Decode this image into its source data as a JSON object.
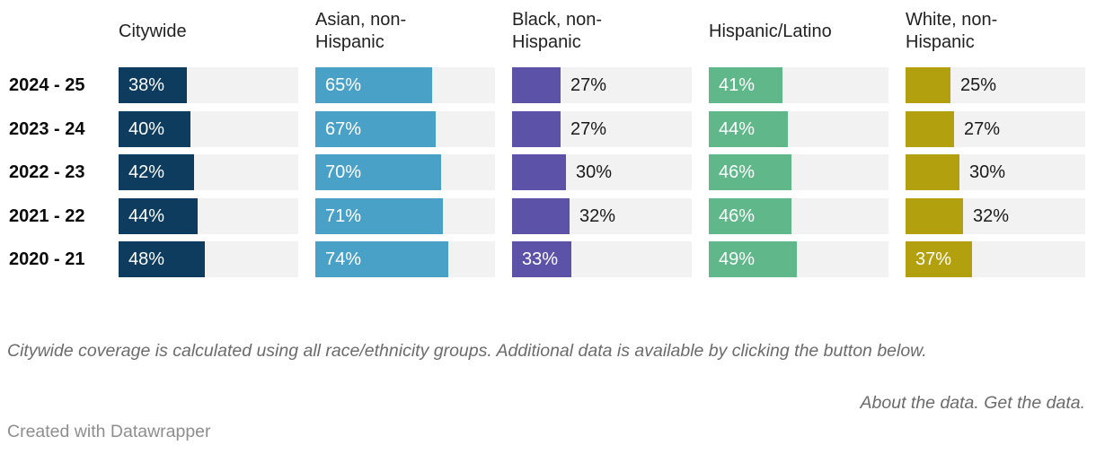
{
  "chart_data": {
    "type": "bar",
    "orientation": "horizontal",
    "categories": [
      "2024 - 25",
      "2023 - 24",
      "2022 - 23",
      "2021 - 22",
      "2020 - 21"
    ],
    "series": [
      {
        "name": "Citywide",
        "header_label": "Citywide",
        "color": "#0d3c5e",
        "values": [
          38,
          40,
          42,
          44,
          48
        ]
      },
      {
        "name": "Asian, non-Hispanic",
        "header_label": "Asian, non-\nHispanic",
        "color": "#4aa1c8",
        "values": [
          65,
          67,
          70,
          71,
          74
        ]
      },
      {
        "name": "Black, non-Hispanic",
        "header_label": "Black, non-\nHispanic",
        "color": "#5c52a7",
        "values": [
          27,
          27,
          30,
          32,
          33
        ]
      },
      {
        "name": "Hispanic/Latino",
        "header_label": "Hispanic/Latino",
        "color": "#60b78a",
        "values": [
          41,
          44,
          46,
          46,
          49
        ]
      },
      {
        "name": "White, non-Hispanic",
        "header_label": "White, non-\nHispanic",
        "color": "#b2a00e",
        "values": [
          25,
          27,
          30,
          32,
          37
        ]
      }
    ],
    "value_suffix": "%",
    "xlim": [
      0,
      100
    ],
    "grid": false,
    "legend_position": "column-headers",
    "track_color": "#f2f2f2"
  },
  "footer": {
    "notes": "Citywide coverage is calculated using all race/ethnicity groups. Additional data is available by clicking the button below.",
    "about_link": "About the data.",
    "get_link": "Get the data.",
    "attribution": "Created with Datawrapper"
  }
}
